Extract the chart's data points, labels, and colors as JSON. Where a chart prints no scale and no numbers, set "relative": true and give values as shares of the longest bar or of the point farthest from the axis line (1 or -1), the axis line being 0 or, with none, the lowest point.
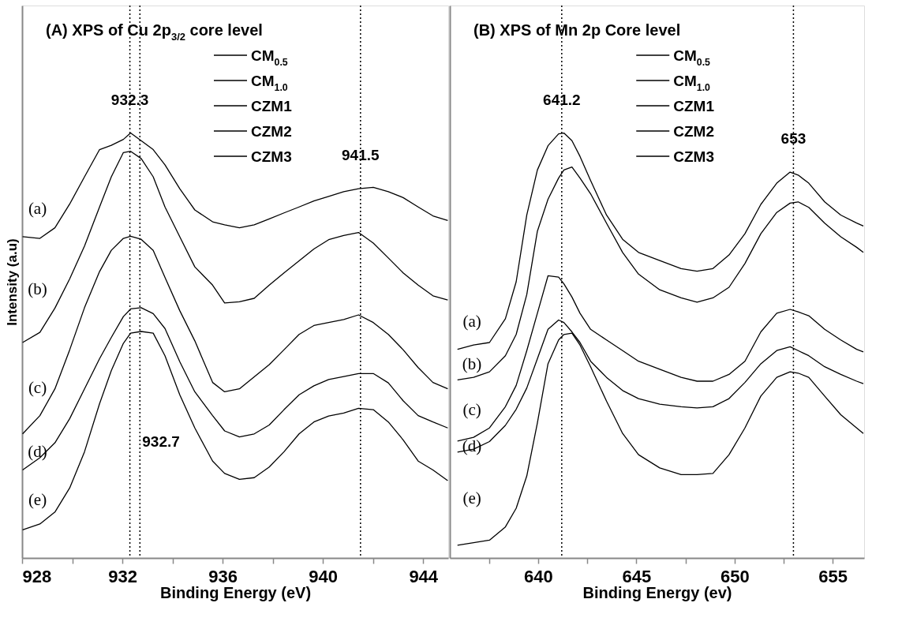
{
  "chart_data": [
    {
      "type": "line",
      "title": "(A) XPS of Cu 2p$_{3/2}$ core level",
      "xlabel": "Binding Energy (eV)",
      "ylabel": "Intensity (a.u)",
      "relative": true,
      "tick_labels": "x",
      "legend": "top",
      "line_style": "solid",
      "xlim": [
        928,
        945
      ],
      "xticks": [
        928,
        {
          "value": 930,
          "label": null
        },
        932,
        {
          "value": 934,
          "label": null
        },
        936,
        {
          "value": 938,
          "label": null
        },
        940,
        {
          "value": 942,
          "label": null
        },
        944
      ],
      "x": [
        928.02,
        928.71,
        929.31,
        929.9,
        930.49,
        931.09,
        931.56,
        932.04,
        932.33,
        932.75,
        933.23,
        933.7,
        934.29,
        934.89,
        935.6,
        936.08,
        936.67,
        937.26,
        937.86,
        938.45,
        939.05,
        939.64,
        940.23,
        940.83,
        941.42,
        942.01,
        942.61,
        943.2,
        943.8,
        944.39,
        944.98
      ],
      "series": [
        {
          "name": "CM$_{0.5}$",
          "color": "#000000",
          "values": [
            0.756,
            0.752,
            0.777,
            0.833,
            0.897,
            0.961,
            0.971,
            0.985,
            1.0,
            0.982,
            0.961,
            0.925,
            0.869,
            0.819,
            0.791,
            0.784,
            0.777,
            0.784,
            0.798,
            0.812,
            0.826,
            0.84,
            0.851,
            0.862,
            0.869,
            0.872,
            0.862,
            0.848,
            0.826,
            0.805,
            0.794
          ]
        },
        {
          "name": "CM$_{1.0}$",
          "color": "#000000",
          "values": [
            0.507,
            0.531,
            0.588,
            0.657,
            0.734,
            0.826,
            0.897,
            0.954,
            0.957,
            0.94,
            0.897,
            0.826,
            0.756,
            0.685,
            0.642,
            0.6,
            0.603,
            0.611,
            0.642,
            0.671,
            0.699,
            0.727,
            0.749,
            0.759,
            0.766,
            0.741,
            0.706,
            0.671,
            0.642,
            0.617,
            0.607
          ]
        },
        {
          "name": "CZM1",
          "color": "#000000",
          "values": [
            0.292,
            0.335,
            0.398,
            0.49,
            0.589,
            0.674,
            0.724,
            0.752,
            0.757,
            0.75,
            0.724,
            0.66,
            0.582,
            0.511,
            0.413,
            0.391,
            0.398,
            0.426,
            0.455,
            0.49,
            0.526,
            0.547,
            0.554,
            0.561,
            0.572,
            0.554,
            0.526,
            0.49,
            0.448,
            0.413,
            0.398
          ]
        },
        {
          "name": "CZM2",
          "color": "#000000",
          "values": [
            0.207,
            0.236,
            0.271,
            0.328,
            0.398,
            0.469,
            0.519,
            0.568,
            0.586,
            0.589,
            0.575,
            0.54,
            0.462,
            0.391,
            0.335,
            0.299,
            0.285,
            0.292,
            0.313,
            0.349,
            0.384,
            0.405,
            0.42,
            0.427,
            0.434,
            0.434,
            0.412,
            0.37,
            0.335,
            0.32,
            0.306
          ]
        },
        {
          "name": "CZM3",
          "color": "#000000",
          "values": [
            0.066,
            0.08,
            0.108,
            0.165,
            0.25,
            0.363,
            0.441,
            0.505,
            0.529,
            0.533,
            0.529,
            0.476,
            0.384,
            0.306,
            0.228,
            0.199,
            0.185,
            0.189,
            0.214,
            0.25,
            0.292,
            0.32,
            0.334,
            0.341,
            0.352,
            0.349,
            0.32,
            0.278,
            0.228,
            0.207,
            0.182
          ]
        }
      ],
      "ref_lines": [
        {
          "axis": "x",
          "value": 932.3,
          "label": "932.3",
          "line_style": "dotted",
          "color": "#000000"
        },
        {
          "axis": "x",
          "value": 932.7,
          "label": "932.7",
          "line_style": "dotted",
          "color": "#000000"
        },
        {
          "axis": "x",
          "value": 941.5,
          "label": "941.5",
          "line_style": "dotted",
          "color": "#000000"
        }
      ],
      "annotations": [
        "(a)",
        "(b)",
        "(c)",
        "(d)",
        "(e)"
      ]
    },
    {
      "type": "line",
      "title": "(B) XPS of Mn 2p Core level",
      "xlabel": "Binding Energy (ev)",
      "relative": true,
      "tick_labels": "x",
      "legend": "top",
      "line_style": "solid",
      "xlim": [
        635.5,
        656.6
      ],
      "xticks": [
        {
          "value": 637.5,
          "label": null
        },
        640,
        {
          "value": 642.5,
          "label": null
        },
        645,
        {
          "value": 647.5,
          "label": null
        },
        650,
        {
          "value": 652.5,
          "label": null
        },
        655
      ],
      "x": [
        635.89,
        636.71,
        637.52,
        638.33,
        638.88,
        639.42,
        639.96,
        640.5,
        641.04,
        641.31,
        641.72,
        642.13,
        642.67,
        643.48,
        644.3,
        645.11,
        646.19,
        647.28,
        648.09,
        648.9,
        649.72,
        650.53,
        651.34,
        652.15,
        652.83,
        653.24,
        653.78,
        654.59,
        655.41,
        656.22,
        656.56
      ],
      "series": [
        {
          "name": "CM$_{0.5}$",
          "color": "#000000",
          "values": [
            0.491,
            0.501,
            0.507,
            0.563,
            0.65,
            0.807,
            0.913,
            0.97,
            0.998,
            1.0,
            0.982,
            0.945,
            0.888,
            0.807,
            0.75,
            0.719,
            0.7,
            0.681,
            0.675,
            0.681,
            0.713,
            0.763,
            0.832,
            0.882,
            0.908,
            0.901,
            0.882,
            0.838,
            0.807,
            0.788,
            0.781
          ]
        },
        {
          "name": "CM$_{1.0}$",
          "color": "#000000",
          "values": [
            0.419,
            0.425,
            0.438,
            0.476,
            0.526,
            0.62,
            0.769,
            0.844,
            0.894,
            0.913,
            0.92,
            0.894,
            0.857,
            0.788,
            0.719,
            0.668,
            0.631,
            0.612,
            0.602,
            0.612,
            0.637,
            0.693,
            0.763,
            0.813,
            0.835,
            0.838,
            0.825,
            0.788,
            0.756,
            0.731,
            0.719
          ]
        },
        {
          "name": "CZM1",
          "color": "#000000",
          "values": [
            0.275,
            0.284,
            0.306,
            0.356,
            0.406,
            0.488,
            0.576,
            0.664,
            0.661,
            0.645,
            0.614,
            0.576,
            0.538,
            0.513,
            0.488,
            0.463,
            0.444,
            0.425,
            0.416,
            0.416,
            0.432,
            0.463,
            0.532,
            0.576,
            0.585,
            0.579,
            0.57,
            0.538,
            0.513,
            0.491,
            0.485
          ]
        },
        {
          "name": "CZM2",
          "color": "#000000",
          "values": [
            0.249,
            0.256,
            0.274,
            0.312,
            0.35,
            0.4,
            0.469,
            0.538,
            0.56,
            0.554,
            0.532,
            0.507,
            0.463,
            0.425,
            0.394,
            0.375,
            0.362,
            0.356,
            0.353,
            0.356,
            0.375,
            0.413,
            0.457,
            0.488,
            0.497,
            0.488,
            0.476,
            0.45,
            0.432,
            0.416,
            0.41
          ]
        },
        {
          "name": "CZM3",
          "color": "#000000",
          "values": [
            0.03,
            0.036,
            0.042,
            0.073,
            0.117,
            0.193,
            0.318,
            0.457,
            0.513,
            0.526,
            0.529,
            0.501,
            0.45,
            0.369,
            0.293,
            0.243,
            0.212,
            0.196,
            0.196,
            0.199,
            0.243,
            0.306,
            0.381,
            0.425,
            0.438,
            0.435,
            0.425,
            0.381,
            0.337,
            0.306,
            0.293
          ]
        }
      ],
      "ref_lines": [
        {
          "axis": "x",
          "value": 641.2,
          "label": "641.2",
          "line_style": "dotted",
          "color": "#000000"
        },
        {
          "axis": "x",
          "value": 653,
          "label": "653",
          "line_style": "dotted",
          "color": "#000000"
        }
      ],
      "annotations": [
        "(a)",
        "(b)",
        "(c)",
        "(d)",
        "(e)"
      ]
    }
  ]
}
